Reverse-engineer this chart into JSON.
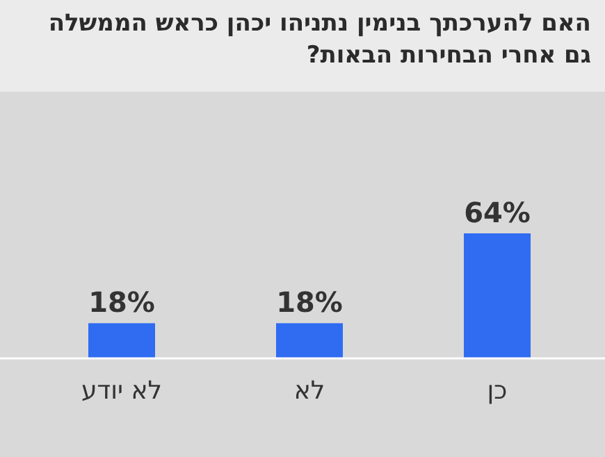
{
  "chart_data": {
    "type": "bar",
    "title": "האם להערכתך בנימין נתניהו יכהן כראש הממשלה גם אחרי הבחירות הבאות?",
    "categories": [
      "לא יודע",
      "לא",
      "כן"
    ],
    "values": [
      18,
      18,
      64
    ],
    "value_labels": [
      "18%",
      "18%",
      "64%"
    ],
    "color": "#2f6cf2"
  }
}
